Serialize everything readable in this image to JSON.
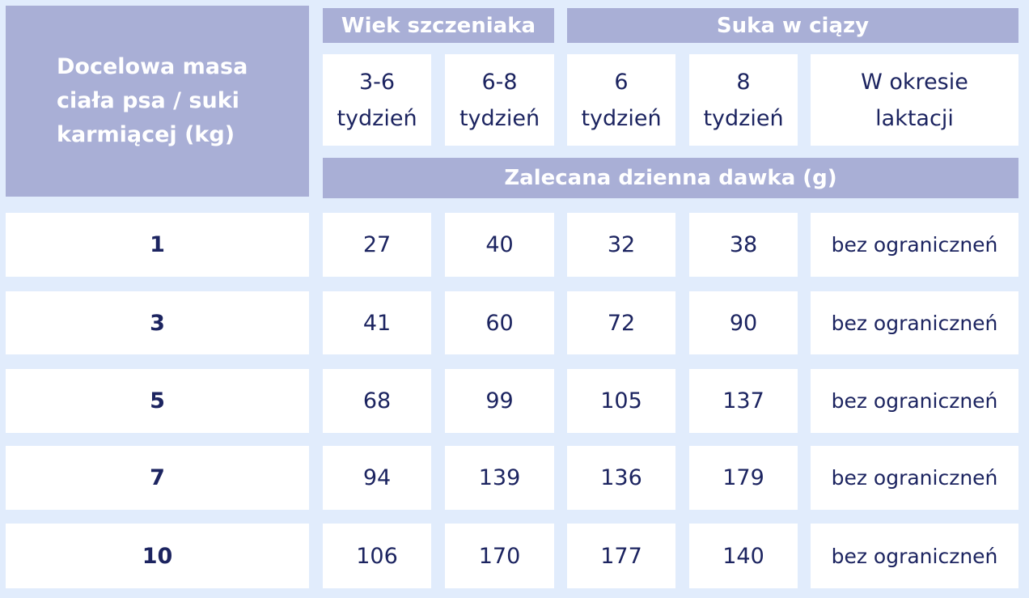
{
  "header": {
    "corner": "Docelowa masa ciała psa / suki karmiącej (kg)",
    "group_puppy": "Wiek szczeniaka",
    "group_pregnant": "Suka w ciązy",
    "subcolumns": [
      "3-6 tydzień",
      "6-8 tydzień",
      "6 tydzień",
      "8 tydzień",
      "W okresie laktacji"
    ],
    "dose": "Zalecana dzienna dawka (g)"
  },
  "rows": [
    {
      "weight": "1",
      "values": [
        "27",
        "40",
        "32",
        "38",
        "bez ograniczneń"
      ]
    },
    {
      "weight": "3",
      "values": [
        "41",
        "60",
        "72",
        "90",
        "bez ograniczneń"
      ]
    },
    {
      "weight": "5",
      "values": [
        "68",
        "99",
        "105",
        "137",
        "bez ograniczneń"
      ]
    },
    {
      "weight": "7",
      "values": [
        "94",
        "139",
        "136",
        "179",
        "bez ograniczneń"
      ]
    },
    {
      "weight": "10",
      "values": [
        "106",
        "170",
        "177",
        "140",
        "bez ograniczneń"
      ]
    }
  ],
  "colors": {
    "background": "#e1ecfc",
    "header": "#a9afd6",
    "text": "#1c2460"
  }
}
